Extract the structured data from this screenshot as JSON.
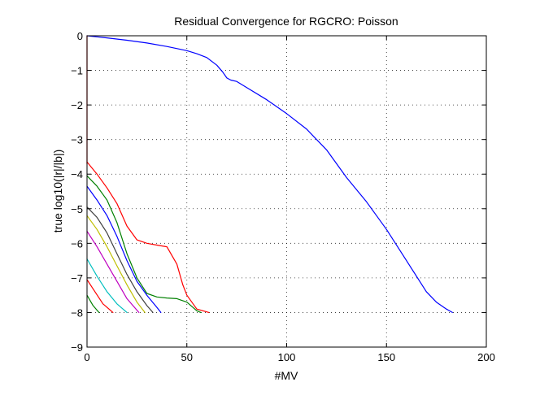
{
  "chart_data": {
    "type": "line",
    "title": "Residual Convergence for RGCRO: Poisson",
    "xlabel": "#MV",
    "ylabel": "true log10(|r|/|b|)",
    "xlim": [
      0,
      200
    ],
    "ylim": [
      -9,
      0
    ],
    "xticks": [
      0,
      50,
      100,
      150,
      200
    ],
    "yticks": [
      0,
      -1,
      -2,
      -3,
      -4,
      -5,
      -6,
      -7,
      -8,
      -9
    ],
    "grid": true,
    "series": [
      {
        "color": "#0000ff",
        "x": [
          0,
          5,
          10,
          20,
          30,
          40,
          50,
          55,
          60,
          65,
          68,
          70,
          72,
          75,
          80,
          90,
          100,
          110,
          120,
          130,
          140,
          145,
          150,
          160,
          170,
          175,
          180,
          183
        ],
        "y": [
          0,
          -0.03,
          -0.06,
          -0.13,
          -0.21,
          -0.31,
          -0.43,
          -0.52,
          -0.63,
          -0.85,
          -1.05,
          -1.22,
          -1.28,
          -1.32,
          -1.5,
          -1.85,
          -2.25,
          -2.7,
          -3.3,
          -4.1,
          -4.8,
          -5.2,
          -5.6,
          -6.5,
          -7.4,
          -7.7,
          -7.9,
          -8.0
        ]
      },
      {
        "color": "#ff0000",
        "x": [
          0,
          0,
          0
        ],
        "y": [
          0,
          -3.0,
          -3.7
        ]
      },
      {
        "color": "#ff0000",
        "x": [
          0,
          5,
          10,
          15,
          20,
          25,
          30,
          35,
          40,
          45,
          48,
          50,
          55,
          61
        ],
        "y": [
          -3.65,
          -4.0,
          -4.4,
          -4.85,
          -5.5,
          -5.9,
          -6.0,
          -6.05,
          -6.1,
          -6.6,
          -7.2,
          -7.5,
          -7.9,
          -8.0
        ]
      },
      {
        "color": "#008000",
        "x": [
          0,
          5,
          10,
          15,
          20,
          25,
          30,
          35,
          40,
          45,
          50,
          55,
          57
        ],
        "y": [
          -4.05,
          -4.35,
          -4.75,
          -5.4,
          -6.3,
          -7.0,
          -7.45,
          -7.55,
          -7.58,
          -7.6,
          -7.7,
          -7.95,
          -8.0
        ]
      },
      {
        "color": "#0000ff",
        "x": [
          0,
          5,
          10,
          15,
          20,
          25,
          30,
          35,
          37
        ],
        "y": [
          -4.35,
          -4.75,
          -5.2,
          -5.8,
          -6.5,
          -7.1,
          -7.5,
          -7.85,
          -8.0
        ]
      },
      {
        "color": "#404040",
        "x": [
          0,
          5,
          10,
          15,
          20,
          25,
          30,
          33
        ],
        "y": [
          -4.95,
          -5.25,
          -5.7,
          -6.3,
          -6.9,
          -7.4,
          -7.8,
          -8.0
        ]
      },
      {
        "color": "#bfbf00",
        "x": [
          0,
          5,
          10,
          15,
          20,
          25,
          29
        ],
        "y": [
          -5.2,
          -5.6,
          -6.1,
          -6.65,
          -7.2,
          -7.7,
          -8.0
        ]
      },
      {
        "color": "#bf00bf",
        "x": [
          0,
          5,
          10,
          15,
          20,
          26
        ],
        "y": [
          -5.65,
          -6.1,
          -6.6,
          -7.1,
          -7.6,
          -8.0
        ]
      },
      {
        "color": "#00bfbf",
        "x": [
          0,
          5,
          10,
          15,
          20
        ],
        "y": [
          -6.45,
          -6.95,
          -7.4,
          -7.75,
          -8.0
        ]
      },
      {
        "color": "#ff0000",
        "x": [
          0,
          4,
          8,
          13
        ],
        "y": [
          -7.05,
          -7.4,
          -7.75,
          -8.0
        ]
      },
      {
        "color": "#008000",
        "x": [
          0,
          3,
          6
        ],
        "y": [
          -7.5,
          -7.8,
          -8.0
        ]
      }
    ]
  }
}
